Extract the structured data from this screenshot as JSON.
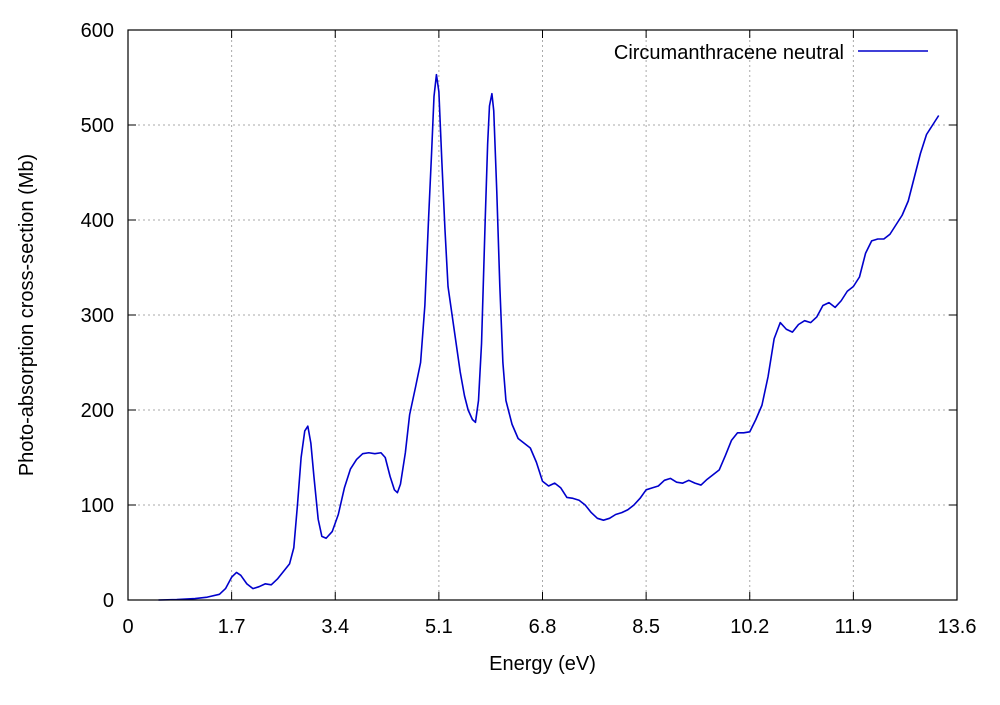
{
  "chart_data": {
    "type": "line",
    "title": "",
    "xlabel": "Energy (eV)",
    "ylabel": "Photo-absorption cross-section (Mb)",
    "xlim": [
      0,
      13.6
    ],
    "ylim": [
      0,
      600
    ],
    "x_ticks": [
      "0",
      "1.7",
      "3.4",
      "5.1",
      "6.8",
      "8.5",
      "10.2",
      "11.9",
      "13.6"
    ],
    "y_ticks": [
      "0",
      "100",
      "200",
      "300",
      "400",
      "500",
      "600"
    ],
    "grid": true,
    "legend_position": "top-right",
    "series": [
      {
        "name": "Circumanthracene neutral",
        "color": "#0000cc",
        "points": [
          [
            0.5,
            0
          ],
          [
            0.8,
            0.5
          ],
          [
            1.1,
            1.5
          ],
          [
            1.3,
            3
          ],
          [
            1.5,
            6
          ],
          [
            1.6,
            12
          ],
          [
            1.7,
            24
          ],
          [
            1.78,
            29
          ],
          [
            1.85,
            26
          ],
          [
            1.95,
            17
          ],
          [
            2.05,
            12
          ],
          [
            2.15,
            14
          ],
          [
            2.25,
            17
          ],
          [
            2.35,
            16
          ],
          [
            2.45,
            22
          ],
          [
            2.55,
            30
          ],
          [
            2.65,
            38
          ],
          [
            2.72,
            55
          ],
          [
            2.78,
            100
          ],
          [
            2.84,
            150
          ],
          [
            2.9,
            178
          ],
          [
            2.95,
            183
          ],
          [
            3.0,
            165
          ],
          [
            3.05,
            130
          ],
          [
            3.12,
            85
          ],
          [
            3.18,
            67
          ],
          [
            3.25,
            65
          ],
          [
            3.35,
            72
          ],
          [
            3.45,
            90
          ],
          [
            3.55,
            118
          ],
          [
            3.65,
            138
          ],
          [
            3.75,
            148
          ],
          [
            3.85,
            154
          ],
          [
            3.95,
            155
          ],
          [
            4.05,
            154
          ],
          [
            4.15,
            155
          ],
          [
            4.22,
            150
          ],
          [
            4.3,
            130
          ],
          [
            4.37,
            116
          ],
          [
            4.42,
            113
          ],
          [
            4.47,
            122
          ],
          [
            4.55,
            155
          ],
          [
            4.62,
            195
          ],
          [
            4.72,
            225
          ],
          [
            4.8,
            250
          ],
          [
            4.87,
            310
          ],
          [
            4.93,
            400
          ],
          [
            4.98,
            470
          ],
          [
            5.02,
            530
          ],
          [
            5.06,
            553
          ],
          [
            5.1,
            535
          ],
          [
            5.15,
            460
          ],
          [
            5.2,
            390
          ],
          [
            5.25,
            330
          ],
          [
            5.35,
            285
          ],
          [
            5.45,
            240
          ],
          [
            5.52,
            215
          ],
          [
            5.58,
            200
          ],
          [
            5.65,
            190
          ],
          [
            5.7,
            187
          ],
          [
            5.75,
            210
          ],
          [
            5.8,
            270
          ],
          [
            5.86,
            400
          ],
          [
            5.9,
            480
          ],
          [
            5.93,
            520
          ],
          [
            5.97,
            533
          ],
          [
            6.0,
            515
          ],
          [
            6.05,
            430
          ],
          [
            6.1,
            330
          ],
          [
            6.15,
            250
          ],
          [
            6.2,
            210
          ],
          [
            6.3,
            185
          ],
          [
            6.4,
            170
          ],
          [
            6.5,
            165
          ],
          [
            6.6,
            160
          ],
          [
            6.7,
            145
          ],
          [
            6.8,
            125
          ],
          [
            6.9,
            120
          ],
          [
            7.0,
            123
          ],
          [
            7.1,
            118
          ],
          [
            7.2,
            108
          ],
          [
            7.3,
            107
          ],
          [
            7.4,
            105
          ],
          [
            7.5,
            100
          ],
          [
            7.6,
            92
          ],
          [
            7.7,
            86
          ],
          [
            7.8,
            84
          ],
          [
            7.9,
            86
          ],
          [
            8.0,
            90
          ],
          [
            8.1,
            92
          ],
          [
            8.2,
            95
          ],
          [
            8.3,
            100
          ],
          [
            8.4,
            107
          ],
          [
            8.5,
            116
          ],
          [
            8.6,
            118
          ],
          [
            8.7,
            120
          ],
          [
            8.8,
            126
          ],
          [
            8.9,
            128
          ],
          [
            9.0,
            124
          ],
          [
            9.1,
            123
          ],
          [
            9.2,
            126
          ],
          [
            9.3,
            123
          ],
          [
            9.4,
            121
          ],
          [
            9.5,
            127
          ],
          [
            9.6,
            132
          ],
          [
            9.7,
            137
          ],
          [
            9.8,
            152
          ],
          [
            9.9,
            168
          ],
          [
            10.0,
            176
          ],
          [
            10.1,
            176
          ],
          [
            10.2,
            177
          ],
          [
            10.3,
            190
          ],
          [
            10.4,
            205
          ],
          [
            10.5,
            235
          ],
          [
            10.6,
            275
          ],
          [
            10.7,
            292
          ],
          [
            10.8,
            285
          ],
          [
            10.9,
            282
          ],
          [
            11.0,
            290
          ],
          [
            11.1,
            294
          ],
          [
            11.2,
            292
          ],
          [
            11.3,
            298
          ],
          [
            11.4,
            310
          ],
          [
            11.5,
            313
          ],
          [
            11.6,
            308
          ],
          [
            11.7,
            315
          ],
          [
            11.8,
            325
          ],
          [
            11.9,
            330
          ],
          [
            12.0,
            340
          ],
          [
            12.1,
            365
          ],
          [
            12.2,
            378
          ],
          [
            12.3,
            380
          ],
          [
            12.4,
            380
          ],
          [
            12.5,
            385
          ],
          [
            12.6,
            395
          ],
          [
            12.7,
            405
          ],
          [
            12.8,
            420
          ],
          [
            12.9,
            445
          ],
          [
            13.0,
            470
          ],
          [
            13.1,
            490
          ],
          [
            13.2,
            500
          ],
          [
            13.3,
            510
          ]
        ]
      }
    ]
  }
}
